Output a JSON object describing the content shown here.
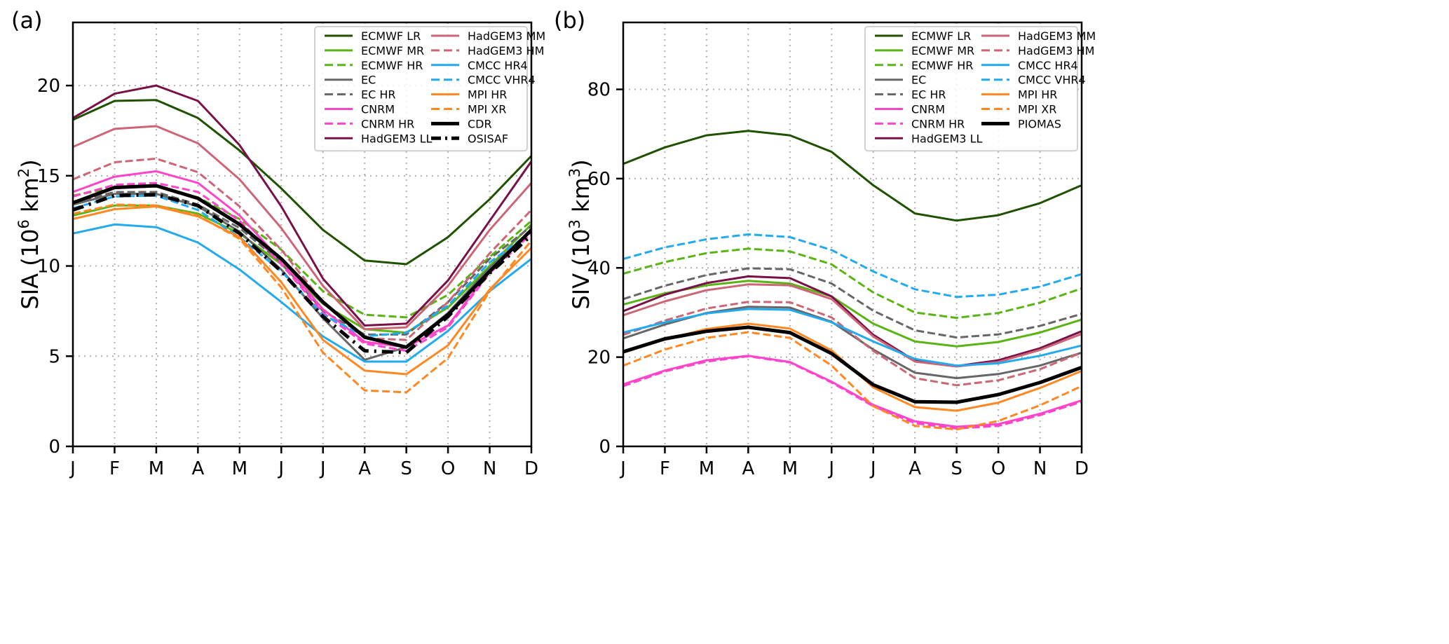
{
  "chart_data": [
    {
      "type": "line",
      "panel_label": "(a)",
      "title": "",
      "xlabel": "",
      "ylabel": "SIA (10^6 km^2)",
      "ylabel_base": "SIA (10",
      "ylabel_exp": "6",
      "ylabel_unit": " km",
      "ylabel_unit_exp": "2",
      "ylabel_close": ")",
      "ylim": [
        0,
        23.5
      ],
      "yticks": [
        0,
        5,
        10,
        15,
        20
      ],
      "categories": [
        "J",
        "F",
        "M",
        "A",
        "M",
        "J",
        "J",
        "A",
        "S",
        "O",
        "N",
        "D"
      ],
      "grid": true,
      "legend_position": "top-right",
      "legend_columns": 2,
      "series": [
        {
          "name": "ECMWF LR",
          "color": "#1f5200",
          "dash": "solid",
          "width": 3,
          "values": [
            18.1,
            19.15,
            19.2,
            18.2,
            16.4,
            14.3,
            12.0,
            10.3,
            10.1,
            11.6,
            13.7,
            16.1
          ]
        },
        {
          "name": "ECMWF MR",
          "color": "#5ab414",
          "dash": "solid",
          "width": 3,
          "values": [
            12.8,
            13.35,
            13.35,
            12.9,
            11.8,
            10.1,
            7.9,
            6.5,
            6.3,
            7.7,
            10.0,
            12.3
          ]
        },
        {
          "name": "ECMWF HR",
          "color": "#5ab414",
          "dash": "dashed",
          "width": 3,
          "values": [
            13.9,
            14.35,
            14.4,
            13.8,
            12.6,
            10.9,
            8.6,
            7.3,
            7.15,
            8.4,
            10.5,
            12.5
          ]
        },
        {
          "name": "EC",
          "color": "#666666",
          "dash": "solid",
          "width": 3,
          "values": [
            13.4,
            14.0,
            14.0,
            13.3,
            11.9,
            9.8,
            7.1,
            4.8,
            5.5,
            7.4,
            9.9,
            12.0
          ]
        },
        {
          "name": "EC HR",
          "color": "#666666",
          "dash": "dashed",
          "width": 3,
          "values": [
            13.5,
            14.1,
            14.1,
            13.4,
            12.1,
            10.2,
            7.5,
            6.2,
            6.2,
            8.0,
            10.4,
            12.2
          ]
        },
        {
          "name": "CNRM",
          "color": "#ff44cc",
          "dash": "solid",
          "width": 3,
          "values": [
            14.1,
            14.95,
            15.25,
            14.6,
            12.8,
            10.3,
            7.6,
            5.8,
            5.5,
            6.7,
            9.7,
            12.0
          ]
        },
        {
          "name": "CNRM HR",
          "color": "#ff44cc",
          "dash": "dashed",
          "width": 3,
          "values": [
            13.85,
            14.5,
            14.6,
            14.1,
            12.5,
            10.1,
            7.4,
            5.7,
            5.3,
            6.6,
            9.6,
            11.8
          ]
        },
        {
          "name": "HadGEM3 LL",
          "color": "#7a1048",
          "dash": "solid",
          "width": 3,
          "values": [
            18.2,
            19.55,
            20.0,
            19.15,
            16.7,
            13.3,
            9.3,
            6.7,
            6.8,
            9.2,
            12.5,
            15.8
          ]
        },
        {
          "name": "HadGEM3 MM",
          "color": "#cc6677",
          "dash": "solid",
          "width": 3,
          "values": [
            16.6,
            17.6,
            17.75,
            16.8,
            14.8,
            12.1,
            8.9,
            6.5,
            6.6,
            8.9,
            12.0,
            14.6
          ]
        },
        {
          "name": "HadGEM3 HM",
          "color": "#cc6677",
          "dash": "dashed",
          "width": 3,
          "values": [
            14.8,
            15.75,
            15.95,
            15.2,
            13.3,
            10.9,
            8.0,
            6.0,
            5.9,
            8.0,
            10.7,
            13.1
          ]
        },
        {
          "name": "CMCC HR4",
          "color": "#22aaee",
          "dash": "solid",
          "width": 3,
          "values": [
            11.8,
            12.3,
            12.15,
            11.3,
            9.8,
            8.0,
            6.1,
            4.7,
            4.7,
            6.4,
            8.6,
            10.4
          ]
        },
        {
          "name": "CMCC VHR4",
          "color": "#22aaee",
          "dash": "dashed",
          "width": 3,
          "values": [
            13.2,
            13.85,
            13.9,
            13.1,
            11.6,
            9.7,
            7.3,
            6.1,
            6.3,
            7.8,
            10.2,
            11.9
          ]
        },
        {
          "name": "MPI HR",
          "color": "#ff8822",
          "dash": "solid",
          "width": 3,
          "values": [
            12.6,
            13.15,
            13.3,
            12.75,
            11.6,
            9.1,
            5.9,
            4.2,
            4.0,
            5.6,
            8.7,
            11.0
          ]
        },
        {
          "name": "MPI XR",
          "color": "#ff8822",
          "dash": "dashed",
          "width": 3,
          "values": [
            12.9,
            13.4,
            13.35,
            12.8,
            11.5,
            8.8,
            5.2,
            3.1,
            3.0,
            4.9,
            8.6,
            11.4
          ]
        },
        {
          "name": "CDR",
          "color": "#000000",
          "dash": "solid",
          "width": 5,
          "values": [
            13.5,
            14.35,
            14.45,
            13.75,
            12.3,
            10.4,
            8.0,
            6.05,
            5.5,
            7.3,
            9.7,
            12.0
          ]
        },
        {
          "name": "OSISAF",
          "color": "#000000",
          "dash": "dashdot",
          "width": 5,
          "values": [
            13.1,
            13.9,
            13.95,
            13.35,
            11.8,
            9.7,
            7.2,
            5.3,
            5.2,
            7.2,
            9.6,
            11.7
          ]
        }
      ]
    },
    {
      "type": "line",
      "panel_label": "(b)",
      "title": "",
      "xlabel": "",
      "ylabel": "SIV (10^3 km^3)",
      "ylabel_base": "SIV (10",
      "ylabel_exp": "3",
      "ylabel_unit": " km",
      "ylabel_unit_exp": "3",
      "ylabel_close": ")",
      "ylim": [
        0,
        95
      ],
      "yticks": [
        0,
        20,
        40,
        60,
        80
      ],
      "categories": [
        "J",
        "F",
        "M",
        "A",
        "M",
        "J",
        "J",
        "A",
        "S",
        "O",
        "N",
        "D"
      ],
      "grid": true,
      "legend_position": "top-right",
      "legend_columns": 2,
      "series": [
        {
          "name": "ECMWF LR",
          "color": "#1f5200",
          "dash": "solid",
          "width": 3,
          "values": [
            63.3,
            67.0,
            69.7,
            70.7,
            69.7,
            66.0,
            58.5,
            52.2,
            50.6,
            51.8,
            54.5,
            58.5
          ]
        },
        {
          "name": "ECMWF MR",
          "color": "#5ab414",
          "dash": "solid",
          "width": 3,
          "values": [
            31.8,
            34.3,
            36.1,
            37.1,
            36.5,
            33.6,
            27.5,
            23.5,
            22.4,
            23.4,
            25.5,
            28.4
          ]
        },
        {
          "name": "ECMWF HR",
          "color": "#5ab414",
          "dash": "dashed",
          "width": 3,
          "values": [
            38.7,
            41.3,
            43.3,
            44.3,
            43.7,
            40.8,
            34.5,
            30.0,
            28.8,
            29.9,
            32.2,
            35.4
          ]
        },
        {
          "name": "EC",
          "color": "#666666",
          "dash": "solid",
          "width": 3,
          "values": [
            24.2,
            27.3,
            29.9,
            31.3,
            31.1,
            27.9,
            21.7,
            16.5,
            15.3,
            16.2,
            18.1,
            21.0
          ]
        },
        {
          "name": "EC HR",
          "color": "#666666",
          "dash": "dashed",
          "width": 3,
          "values": [
            33.0,
            36.0,
            38.4,
            39.9,
            39.7,
            36.5,
            30.4,
            26.0,
            24.4,
            25.1,
            27.0,
            29.7
          ]
        },
        {
          "name": "CNRM",
          "color": "#ff44cc",
          "dash": "solid",
          "width": 3,
          "values": [
            13.9,
            17.0,
            19.3,
            20.3,
            18.9,
            14.5,
            9.3,
            5.6,
            4.4,
            5.0,
            7.3,
            10.3
          ]
        },
        {
          "name": "CNRM HR",
          "color": "#ff44cc",
          "dash": "dashed",
          "width": 3,
          "values": [
            13.5,
            16.8,
            19.0,
            20.2,
            18.8,
            14.3,
            9.0,
            5.2,
            4.0,
            4.6,
            7.0,
            10.0
          ]
        },
        {
          "name": "HadGEM3 LL",
          "color": "#7a1048",
          "dash": "solid",
          "width": 3,
          "values": [
            30.3,
            34.0,
            36.6,
            38.1,
            37.7,
            33.6,
            25.0,
            19.2,
            18.0,
            19.3,
            22.0,
            25.8
          ]
        },
        {
          "name": "HadGEM3 MM",
          "color": "#cc6677",
          "dash": "solid",
          "width": 3,
          "values": [
            29.4,
            32.5,
            35.0,
            36.3,
            36.1,
            33.0,
            24.6,
            19.0,
            17.9,
            18.9,
            21.6,
            25.2
          ]
        },
        {
          "name": "HadGEM3 HM",
          "color": "#cc6677",
          "dash": "dashed",
          "width": 3,
          "values": [
            25.0,
            28.2,
            30.9,
            32.4,
            32.3,
            28.9,
            21.4,
            15.3,
            13.7,
            14.8,
            17.3,
            21.0
          ]
        },
        {
          "name": "CMCC HR4",
          "color": "#22aaee",
          "dash": "solid",
          "width": 3,
          "values": [
            25.5,
            27.8,
            29.8,
            30.8,
            30.6,
            27.8,
            23.5,
            19.6,
            18.1,
            18.6,
            20.3,
            22.6
          ]
        },
        {
          "name": "CMCC VHR4",
          "color": "#22aaee",
          "dash": "dashed",
          "width": 3,
          "values": [
            42.0,
            44.6,
            46.4,
            47.5,
            46.9,
            44.0,
            39.2,
            35.2,
            33.5,
            34.0,
            35.8,
            38.6
          ]
        },
        {
          "name": "MPI HR",
          "color": "#ff8822",
          "dash": "solid",
          "width": 3,
          "values": [
            21.0,
            24.0,
            26.3,
            27.5,
            26.4,
            21.5,
            13.2,
            8.8,
            8.0,
            9.8,
            13.1,
            16.9
          ]
        },
        {
          "name": "MPI XR",
          "color": "#ff8822",
          "dash": "dashed",
          "width": 3,
          "values": [
            18.1,
            21.7,
            24.3,
            25.6,
            24.3,
            18.1,
            9.0,
            4.6,
            3.8,
            5.7,
            9.2,
            13.5
          ]
        },
        {
          "name": "PIOMAS",
          "color": "#000000",
          "dash": "solid",
          "width": 5,
          "values": [
            21.2,
            24.1,
            25.8,
            26.7,
            25.5,
            20.8,
            13.8,
            10.0,
            9.9,
            11.6,
            14.3,
            17.7
          ]
        }
      ]
    }
  ]
}
